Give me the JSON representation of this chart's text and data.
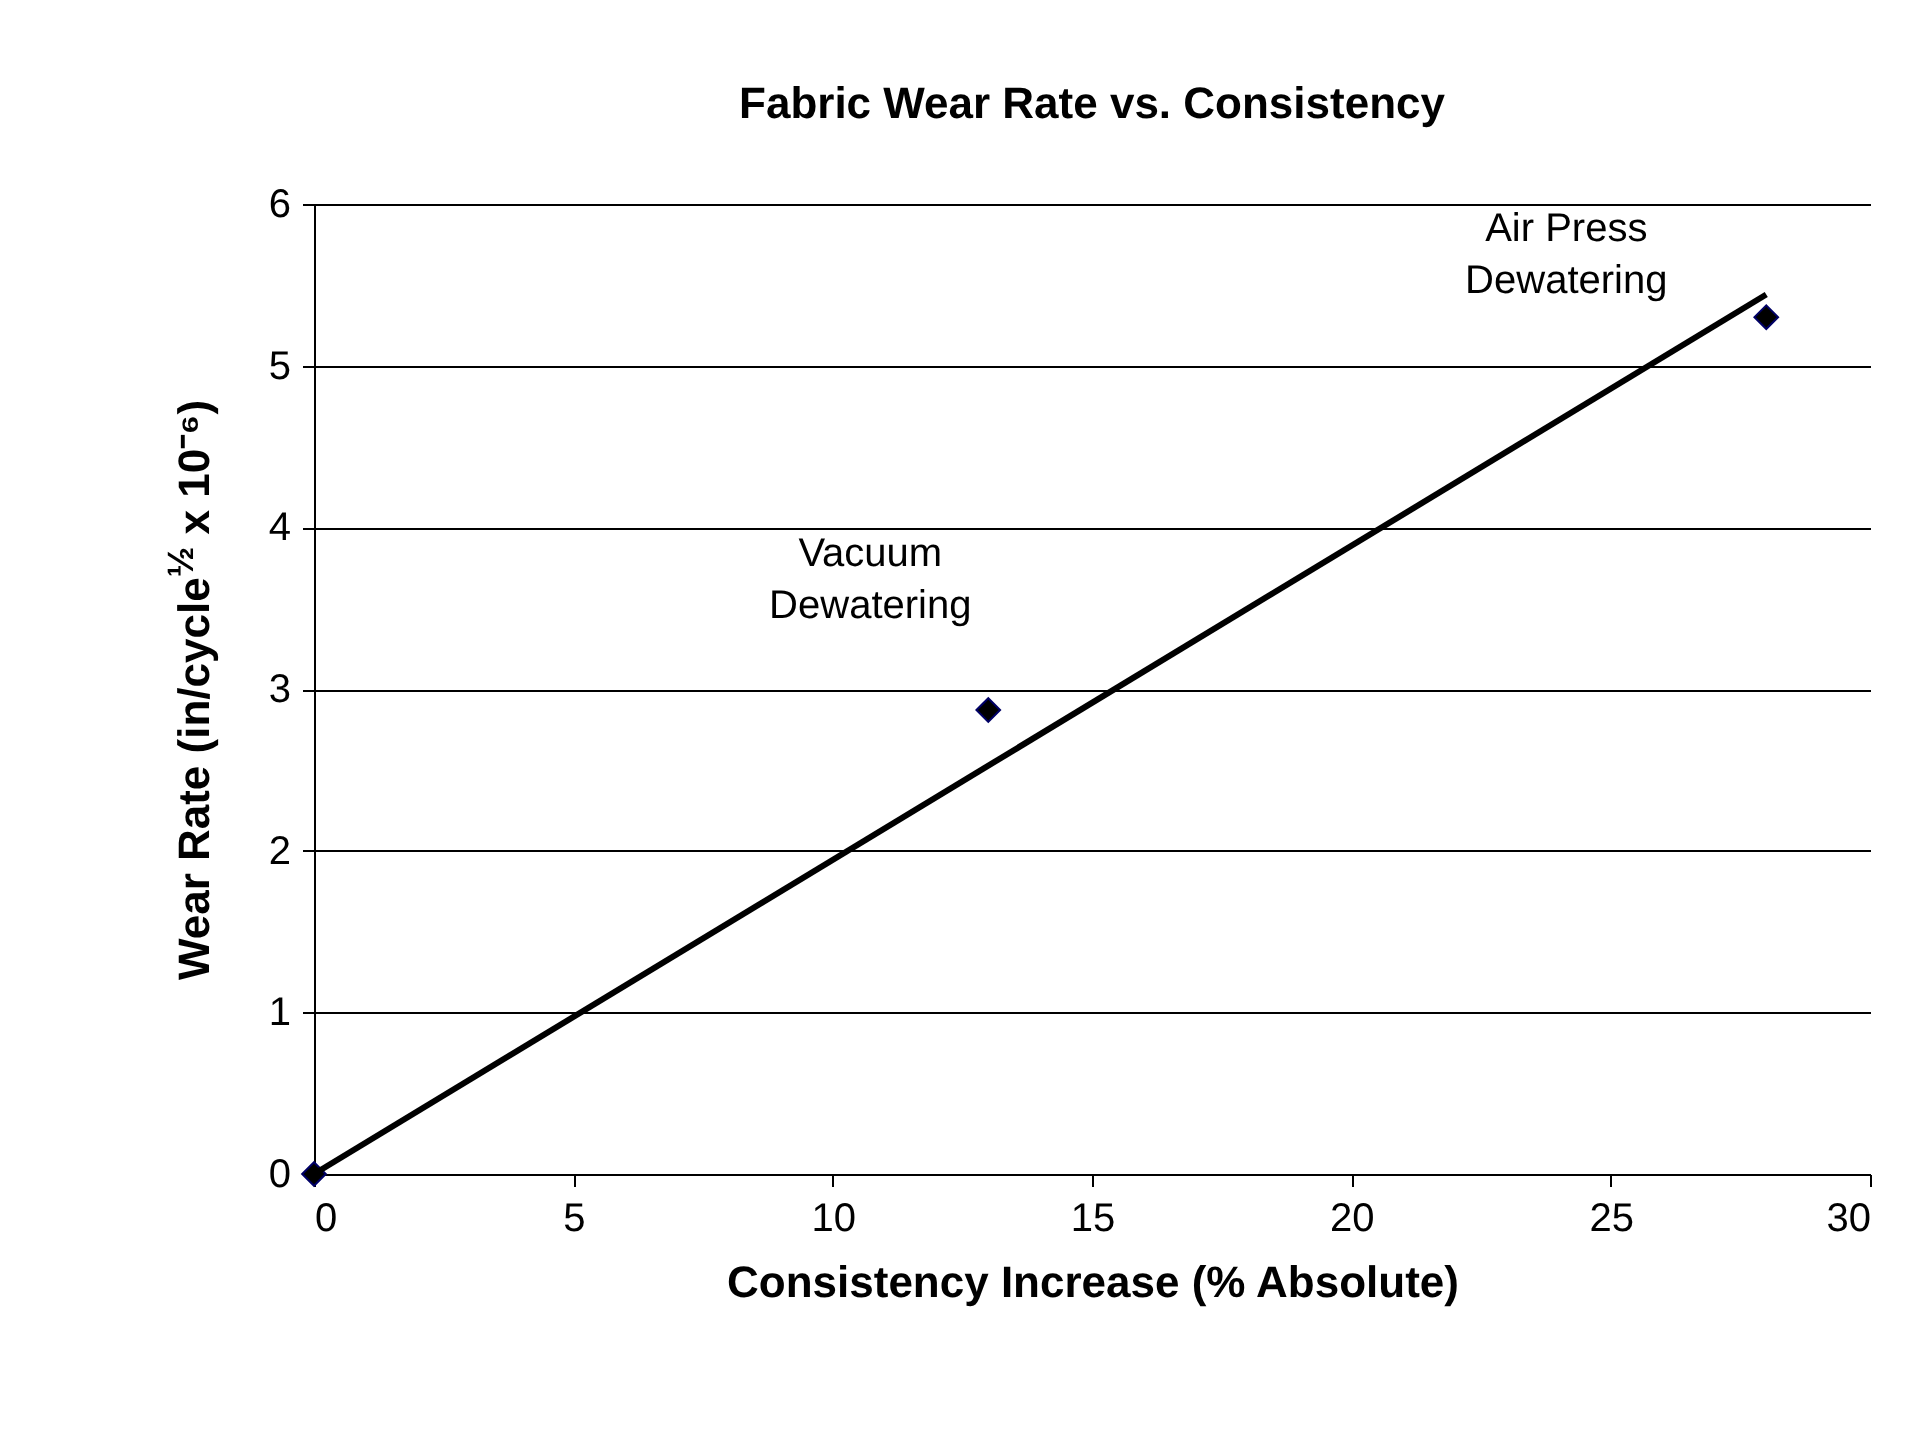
{
  "chart_data": {
    "type": "scatter",
    "title": "Fabric Wear Rate vs. Consistency",
    "xlabel": "Consistency Increase (% Absolute)",
    "ylabel": "Wear Rate (in/cycle$^{½}$ x 10⁻⁶)",
    "x": [
      0,
      13,
      28
    ],
    "series": [
      {
        "type": "scatter",
        "color": "#000000",
        "marker": "diamond",
        "values": [
          0,
          2.87,
          5.3
        ]
      },
      {
        "type": "line",
        "color": "#000000",
        "x": [
          0,
          28
        ],
        "values": [
          0,
          5.44
        ]
      }
    ],
    "annotations": [
      {
        "text": "Vacuum\nDewatering",
        "x": 13,
        "y": 2.87
      },
      {
        "text": "Air Press\nDewatering",
        "x": 28,
        "y": 5.3
      }
    ],
    "xlim": [
      0,
      30
    ],
    "xticks": [
      0,
      5,
      10,
      15,
      20,
      25,
      30
    ],
    "ylim": [
      0,
      6
    ],
    "yticks": [
      0,
      1,
      2,
      3,
      4,
      5,
      6
    ],
    "grid": "y"
  }
}
